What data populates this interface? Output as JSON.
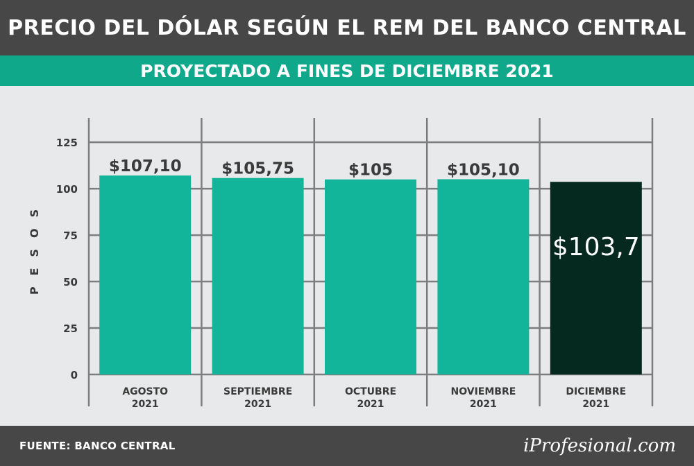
{
  "header": {
    "title": "PRECIO DEL DÓLAR SEGÚN EL REM DEL BANCO CENTRAL"
  },
  "subheader": {
    "title": "PROYECTADO A FINES DE DICIEMBRE 2021"
  },
  "footer": {
    "source": "FUENTE: BANCO CENTRAL",
    "brand": "iProfesional.com"
  },
  "chart_data": {
    "type": "bar",
    "ylabel": "PESOS",
    "ylim": [
      0,
      137
    ],
    "yticks": [
      0,
      25,
      50,
      75,
      100,
      125
    ],
    "grid": true,
    "categories": [
      {
        "line1": "AGOSTO",
        "line2": "2021"
      },
      {
        "line1": "SEPTIEMBRE",
        "line2": "2021"
      },
      {
        "line1": "OCTUBRE",
        "line2": "2021"
      },
      {
        "line1": "NOVIEMBRE",
        "line2": "2021"
      },
      {
        "line1": "DICIEMBRE",
        "line2": "2021"
      }
    ],
    "values": [
      107.1,
      105.75,
      105,
      105.1,
      103.7
    ],
    "value_labels": [
      "$107,10",
      "$105,75",
      "$105",
      "$105,10",
      "$103,7"
    ],
    "colors": {
      "bar": "#12b59a",
      "highlight_bar": "#06291f",
      "grid": "#7d7d7d",
      "text": "#3a3a3a"
    }
  }
}
